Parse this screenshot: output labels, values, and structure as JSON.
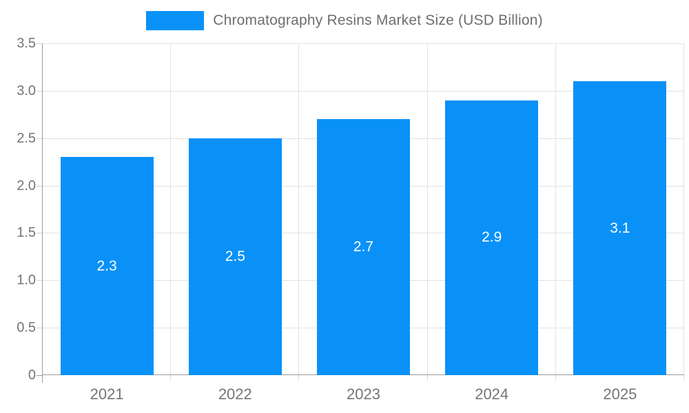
{
  "legend": {
    "label": "Chromatography Resins Market Size (USD Billion)"
  },
  "chart_data": {
    "type": "bar",
    "title": "Chromatography Resins Market Size (USD Billion)",
    "xlabel": "",
    "ylabel": "",
    "categories": [
      "2021",
      "2022",
      "2023",
      "2024",
      "2025"
    ],
    "values": [
      2.3,
      2.5,
      2.7,
      2.9,
      3.1
    ],
    "value_labels": [
      "2.3",
      "2.5",
      "2.7",
      "2.9",
      "3.1"
    ],
    "series": [
      {
        "name": "Chromatography Resins Market Size (USD Billion)",
        "values": [
          2.3,
          2.5,
          2.7,
          2.9,
          3.1
        ]
      }
    ],
    "ylim": [
      0,
      3.5
    ],
    "yticks": [
      {
        "v": 0,
        "label": "0"
      },
      {
        "v": 0.5,
        "label": "0.5"
      },
      {
        "v": 1.0,
        "label": "1.0"
      },
      {
        "v": 1.5,
        "label": "1.5"
      },
      {
        "v": 2.0,
        "label": "2.0"
      },
      {
        "v": 2.5,
        "label": "2.5"
      },
      {
        "v": 3.0,
        "label": "3.0"
      },
      {
        "v": 3.5,
        "label": "3.5"
      }
    ],
    "grid": true,
    "legend_position": "top",
    "colors": {
      "bar": "#0a91f8",
      "gridline": "#e2e2e2",
      "axis_line": "#9a9a9a",
      "ytick_mark": "#cfcfcf",
      "xtick_mark": "#d9d9d9",
      "tick_text": "#757575",
      "legend_text": "#6e6e6e",
      "bar_value_text": "#ffffff",
      "background": "#ffffff"
    }
  }
}
